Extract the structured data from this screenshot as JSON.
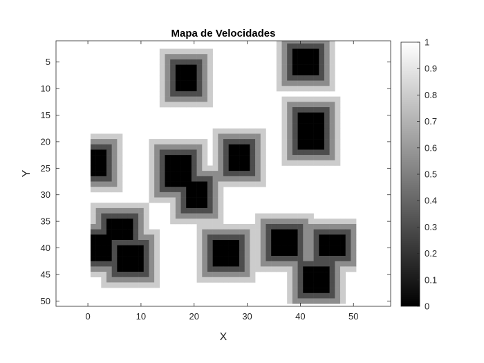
{
  "chart_data": {
    "type": "heatmap",
    "title": "Mapa de Velocidades",
    "xlabel": "X",
    "ylabel": "Y",
    "xlim": [
      -6,
      57
    ],
    "ylim": [
      51,
      1
    ],
    "y_direction": "reversed",
    "grid": false,
    "colormap": "gray",
    "colorbar": {
      "position": "right",
      "range": [
        0,
        1
      ],
      "ticks": [
        0,
        0.1,
        0.2,
        0.3,
        0.4,
        0.5,
        0.6,
        0.7,
        0.8,
        0.9,
        1
      ],
      "tick_labels": [
        "0",
        "0.1",
        "0.2",
        "0.3",
        "0.4",
        "0.5",
        "0.6",
        "0.7",
        "0.8",
        "0.9",
        "1"
      ]
    },
    "x_ticks": [
      0,
      10,
      20,
      30,
      40,
      50
    ],
    "x_tick_labels": [
      "0",
      "10",
      "20",
      "30",
      "40",
      "50"
    ],
    "y_ticks": [
      5,
      10,
      15,
      20,
      25,
      30,
      35,
      40,
      45,
      50
    ],
    "y_tick_labels": [
      "5",
      "10",
      "15",
      "20",
      "25",
      "30",
      "35",
      "40",
      "45",
      "50"
    ],
    "grid_extent": {
      "x_range": [
        1,
        50
      ],
      "y_range": [
        1,
        50
      ]
    },
    "value_profile": {
      "description_levels": [
        0,
        0.3,
        0.55,
        0.8,
        1
      ],
      "obstacle_value": 0,
      "free_value": 1
    },
    "obstacles": [
      {
        "x_range": [
          17,
          20
        ],
        "y_range": [
          6,
          10
        ]
      },
      {
        "x_range": [
          39,
          43
        ],
        "y_range": [
          3,
          7
        ]
      },
      {
        "x_range": [
          40,
          44
        ],
        "y_range": [
          15,
          21
        ]
      },
      {
        "x_range": [
          1,
          3
        ],
        "y_range": [
          22,
          26
        ]
      },
      {
        "x_range": [
          15,
          19
        ],
        "y_range": [
          23,
          28
        ]
      },
      {
        "x_range": [
          27,
          30
        ],
        "y_range": [
          21,
          25
        ]
      },
      {
        "x_range": [
          19,
          22
        ],
        "y_range": [
          28,
          32
        ]
      },
      {
        "x_range": [
          4,
          8
        ],
        "y_range": [
          35,
          38
        ]
      },
      {
        "x_range": [
          1,
          4
        ],
        "y_range": [
          38,
          42
        ]
      },
      {
        "x_range": [
          6,
          10
        ],
        "y_range": [
          40,
          44
        ]
      },
      {
        "x_range": [
          24,
          28
        ],
        "y_range": [
          39,
          43
        ]
      },
      {
        "x_range": [
          35,
          39
        ],
        "y_range": [
          37,
          41
        ]
      },
      {
        "x_range": [
          44,
          48
        ],
        "y_range": [
          38,
          41
        ]
      },
      {
        "x_range": [
          41,
          45
        ],
        "y_range": [
          44,
          48
        ]
      }
    ]
  }
}
